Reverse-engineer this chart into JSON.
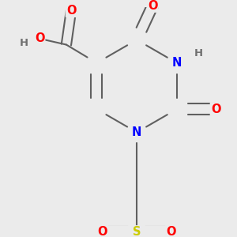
{
  "background_color": "#ebebeb",
  "atom_colors": {
    "C": "#606060",
    "N": "#0000ff",
    "O": "#ff0000",
    "S": "#cccc00",
    "H": "#707070"
  },
  "bond_color": "#606060",
  "bond_width": 1.5,
  "font_size": 10.5
}
